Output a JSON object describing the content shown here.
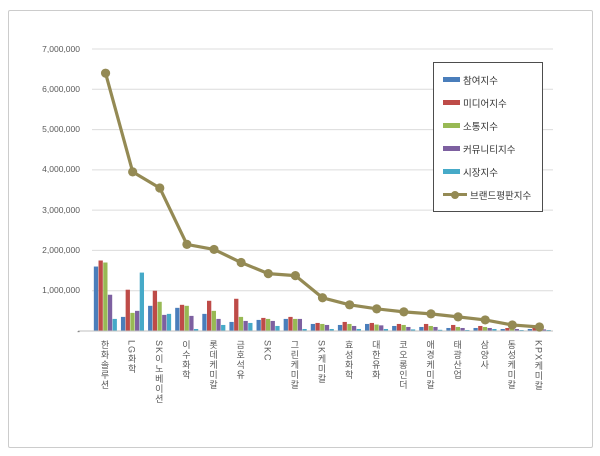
{
  "chart_data": {
    "type": "bar+line",
    "title": "",
    "categories": [
      "한화솔루션",
      "LG화학",
      "SK이노베이션",
      "이수화학",
      "롯데케미칼",
      "금호석유",
      "SKC",
      "그린케미칼",
      "SK케미칼",
      "효성화학",
      "대한유화",
      "코오롱인더",
      "애경케미칼",
      "태광산업",
      "삼양사",
      "동성케미칼",
      "KPX케미칼"
    ],
    "series": [
      {
        "name": "참여지수",
        "type": "bar",
        "color": "#4A7EBB",
        "values": [
          1600000,
          350000,
          625000,
          575000,
          425000,
          225000,
          275000,
          300000,
          175000,
          150000,
          175000,
          125000,
          100000,
          75000,
          75000,
          50000,
          50000
        ]
      },
      {
        "name": "미디어지수",
        "type": "bar",
        "color": "#BE4B48",
        "values": [
          1750000,
          1025000,
          1000000,
          650000,
          750000,
          800000,
          325000,
          350000,
          200000,
          225000,
          200000,
          175000,
          175000,
          150000,
          125000,
          75000,
          75000
        ]
      },
      {
        "name": "소통지수",
        "type": "bar",
        "color": "#98B954",
        "values": [
          1700000,
          450000,
          725000,
          625000,
          500000,
          350000,
          300000,
          300000,
          175000,
          175000,
          160000,
          150000,
          125000,
          100000,
          100000,
          50000,
          50000
        ]
      },
      {
        "name": "커뮤니티지수",
        "type": "bar",
        "color": "#7D60A0",
        "values": [
          900000,
          500000,
          400000,
          375000,
          300000,
          250000,
          250000,
          300000,
          150000,
          125000,
          140000,
          100000,
          100000,
          75000,
          75000,
          50000,
          40000
        ]
      },
      {
        "name": "시장지수",
        "type": "bar",
        "color": "#46AAC8",
        "values": [
          300000,
          1450000,
          425000,
          50000,
          150000,
          200000,
          125000,
          50000,
          50000,
          50000,
          50000,
          40000,
          30000,
          25000,
          50000,
          25000,
          25000
        ]
      },
      {
        "name": "브랜드평판지수",
        "type": "line",
        "color": "#948A54",
        "values": [
          6400000,
          3950000,
          3550000,
          2150000,
          2025000,
          1700000,
          1425000,
          1375000,
          825000,
          650000,
          550000,
          475000,
          425000,
          350000,
          275000,
          150000,
          100000
        ]
      }
    ],
    "y_axis": {
      "min": 0,
      "max": 7000000,
      "step": 1000000,
      "tick_labels": [
        "-",
        "1,000,000",
        "2,000,000",
        "3,000,000",
        "4,000,000",
        "5,000,000",
        "6,000,000",
        "7,000,000"
      ]
    },
    "xlabel": "",
    "ylabel": "",
    "grid": true,
    "legend_position": "inside-top-right"
  },
  "colors": {
    "background": "#FFFFFF",
    "frame_border": "#CCCCCC",
    "gridline": "#DCDCDC",
    "axis_line": "#BFBFBF",
    "tick_text": "#595959",
    "legend_border": "#4D4D4D",
    "legend_text": "#333333"
  }
}
